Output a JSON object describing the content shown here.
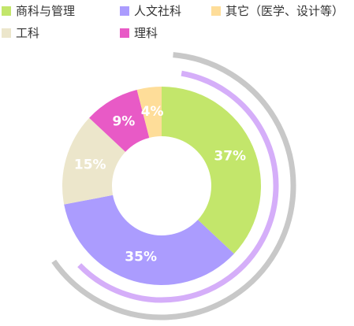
{
  "chart_data": {
    "type": "pie",
    "variant": "donut",
    "categories": [
      "商科与管理",
      "人文社科",
      "其它（医学、设计等）",
      "工科",
      "理科"
    ],
    "values": [
      37,
      35,
      4,
      15,
      9
    ],
    "value_labels": [
      "37%",
      "35%",
      "4%",
      "15%",
      "9%"
    ],
    "colors": [
      "#c3e66b",
      "#ab9cfe",
      "#fedd99",
      "#ece6cb",
      "#e85ac6"
    ],
    "legend_position": "top",
    "decorative_arc_colors": [
      "#c8c8c8",
      "#d5aef9"
    ]
  }
}
